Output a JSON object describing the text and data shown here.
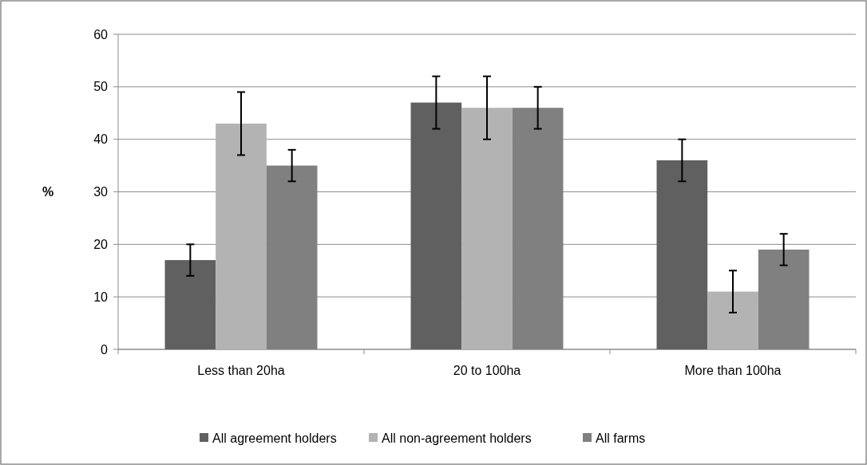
{
  "chart_data": {
    "type": "bar",
    "ylabel": "%",
    "categories": [
      "Less than 20ha",
      "20 to 100ha",
      "More than 100ha"
    ],
    "series": [
      {
        "name": "All agreement holders",
        "color": "#606060",
        "values": [
          17,
          47,
          36
        ],
        "errors": [
          3,
          5,
          4
        ]
      },
      {
        "name": "All non-agreement holders",
        "color": "#b3b3b3",
        "values": [
          43,
          46,
          11
        ],
        "errors": [
          6,
          6,
          4
        ]
      },
      {
        "name": "All farms",
        "color": "#808080",
        "values": [
          35,
          46,
          19
        ],
        "errors": [
          3,
          4,
          3
        ]
      }
    ],
    "ylim": [
      0,
      60
    ],
    "yticks": [
      0,
      10,
      20,
      30,
      40,
      50,
      60
    ],
    "grid": "y",
    "legend": "bottom"
  }
}
